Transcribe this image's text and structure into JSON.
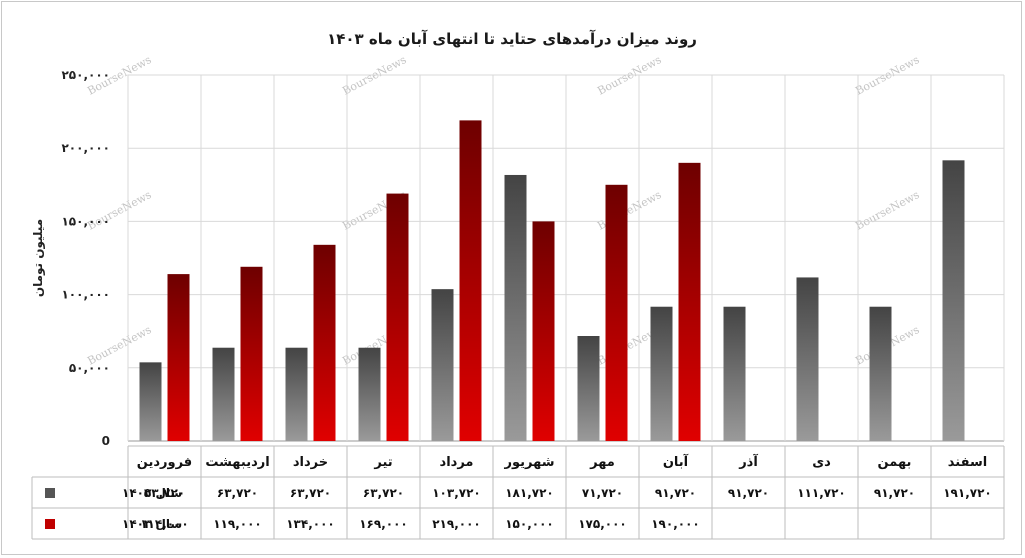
{
  "chart_data": {
    "type": "bar",
    "title": "روند میزان درآمدهای حتاید تا انتهای آبان ماه ۱۴۰۳",
    "ylabel": "میلیون تومان",
    "ylim": [
      0,
      250000
    ],
    "yticks": [
      0,
      50000,
      100000,
      150000,
      200000,
      250000
    ],
    "ytick_labels": [
      "0",
      "۵۰,۰۰۰",
      "۱۰۰,۰۰۰",
      "۱۵۰,۰۰۰",
      "۲۰۰,۰۰۰",
      "۲۵۰,۰۰۰"
    ],
    "grid": true,
    "categories": [
      "فروردین",
      "اردیبهشت",
      "خرداد",
      "تیر",
      "مرداد",
      "شهریور",
      "مهر",
      "آبان",
      "آذر",
      "دی",
      "بهمن",
      "اسفند"
    ],
    "series": [
      {
        "name": "سال ۱۴۰۲",
        "color": "#555555",
        "values": [
          53720,
          63720,
          63720,
          63720,
          103720,
          181720,
          71720,
          91720,
          91720,
          111720,
          91720,
          191720
        ],
        "labels": [
          "۵۳,۷۲۰",
          "۶۳,۷۲۰",
          "۶۳,۷۲۰",
          "۶۳,۷۲۰",
          "۱۰۳,۷۲۰",
          "۱۸۱,۷۲۰",
          "۷۱,۷۲۰",
          "۹۱,۷۲۰",
          "۹۱,۷۲۰",
          "۱۱۱,۷۲۰",
          "۹۱,۷۲۰",
          "۱۹۱,۷۲۰"
        ]
      },
      {
        "name": "سال ۱۴۰۳",
        "color": "#c00000",
        "values": [
          114000,
          119000,
          134000,
          169000,
          219000,
          150000,
          175000,
          190000,
          null,
          null,
          null,
          null
        ],
        "labels": [
          "۱۱۴,۰۰۰",
          "۱۱۹,۰۰۰",
          "۱۳۴,۰۰۰",
          "۱۶۹,۰۰۰",
          "۲۱۹,۰۰۰",
          "۱۵۰,۰۰۰",
          "۱۷۵,۰۰۰",
          "۱۹۰,۰۰۰",
          "",
          "",
          "",
          ""
        ]
      }
    ],
    "legend_placement": "data-table-right",
    "watermark": "BourseNews"
  }
}
